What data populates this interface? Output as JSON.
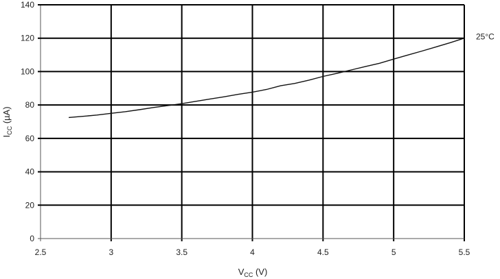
{
  "chart_data": {
    "type": "line",
    "xlabel": {
      "main": "V",
      "sub": "CC",
      "rest": " (V)"
    },
    "ylabel": {
      "main": "I",
      "sub": "CC",
      "rest": " (µA)"
    },
    "xlim": [
      2.5,
      5.5
    ],
    "ylim": [
      0,
      140
    ],
    "xticks": [
      "2.5",
      "3",
      "3.5",
      "4",
      "4.5",
      "5",
      "5.5"
    ],
    "yticks": [
      "0",
      "20",
      "40",
      "60",
      "80",
      "100",
      "120",
      "140"
    ],
    "grid": true,
    "series": [
      {
        "name": "25°C",
        "x": [
          2.7,
          2.8,
          2.9,
          3.0,
          3.1,
          3.2,
          3.3,
          3.4,
          3.5,
          3.6,
          3.7,
          3.8,
          3.9,
          4.0,
          4.1,
          4.2,
          4.3,
          4.4,
          4.5,
          4.6,
          4.7,
          4.8,
          4.9,
          5.0,
          5.1,
          5.2,
          5.3,
          5.4,
          5.5
        ],
        "y": [
          72.5,
          73.2,
          74.0,
          75.0,
          76.0,
          77.2,
          78.5,
          79.6,
          80.8,
          82.2,
          83.6,
          84.9,
          86.4,
          87.7,
          89.3,
          91.5,
          92.9,
          94.9,
          97.1,
          99.0,
          101.0,
          103.0,
          105.0,
          107.5,
          109.9,
          112.3,
          114.8,
          117.3,
          120.0
        ]
      }
    ]
  }
}
